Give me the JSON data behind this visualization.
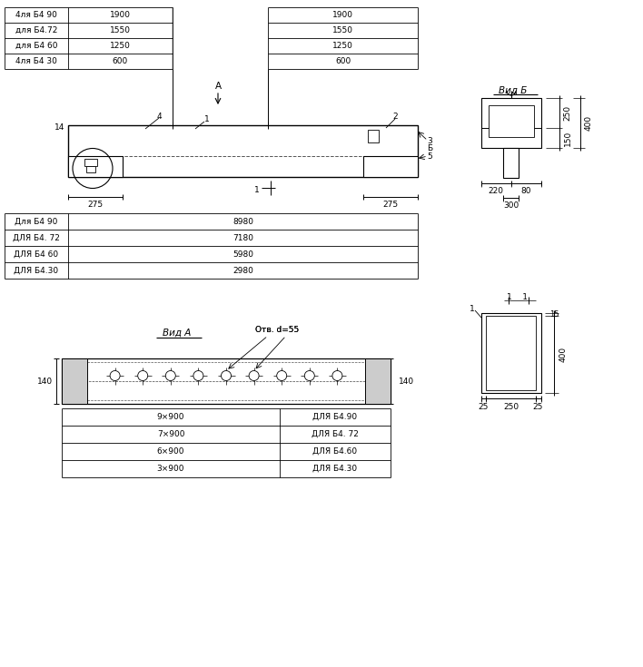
{
  "bg_color": "#ffffff",
  "lc": "#000000",
  "fs": 6.5,
  "fm": 7.5,
  "top_labels": [
    "4ля Б4 90",
    "для Б4.72",
    "для Б4 60",
    "4ля Б4 30"
  ],
  "top_vals_l": [
    "1900",
    "1550",
    "1250",
    "600"
  ],
  "top_vals_r": [
    "1900",
    "1550",
    "1250",
    "600"
  ],
  "bot_labels": [
    "Для Б4 90",
    "ДЛЯ Б4. 72",
    "ДЛЯ Б4 60",
    "ДЛЯ Б4.30"
  ],
  "bot_vals": [
    "8980",
    "7180",
    "5980",
    "2980"
  ],
  "va_left": [
    "9×900",
    "7×900",
    "6×900",
    "3×900"
  ],
  "va_right": [
    "ДЛЯ Б4.90",
    "ДЛЯ Б4. 72",
    "ДЛЯ Б4.60",
    "ДЛЯ Б4.30"
  ]
}
